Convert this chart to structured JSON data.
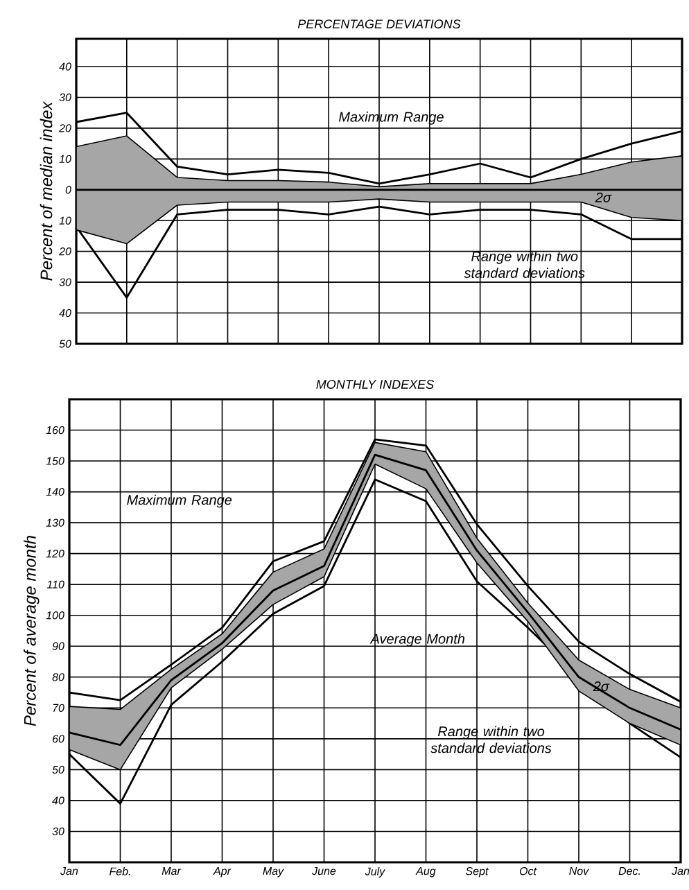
{
  "chart_data": [
    {
      "type": "line",
      "title": "PERCENTAGE DEVIATIONS",
      "ylabel": "Percent of median index",
      "categories": [
        null,
        null,
        null,
        null,
        null,
        null,
        null,
        null,
        null,
        null,
        null,
        null,
        null
      ],
      "tick_labels": "y",
      "grid": true,
      "ylim": [
        -50,
        49
      ],
      "yticks": [
        40,
        30,
        20,
        10,
        0,
        {
          "value": -10,
          "label": "10"
        },
        {
          "value": -20,
          "label": "20"
        },
        {
          "value": -30,
          "label": "30"
        },
        {
          "value": -40,
          "label": "40"
        },
        {
          "value": -50,
          "label": "50"
        }
      ],
      "series": [
        {
          "color": "#000000",
          "values": [
            22,
            25,
            7.5,
            5,
            6.5,
            5.5,
            2,
            5,
            8.5,
            4,
            10,
            15,
            19
          ]
        },
        {
          "color": "#000000",
          "values": [
            -12,
            -35,
            -8,
            -6.5,
            -6.5,
            -8,
            -5.5,
            -8,
            -6.5,
            -6.5,
            -8,
            -16,
            -16
          ]
        },
        {
          "color": "#000000",
          "values": [
            0,
            0,
            0,
            0,
            0,
            0,
            0,
            0,
            0,
            0,
            0,
            0,
            0
          ],
          "upper": [
            14,
            17.5,
            4,
            3,
            3,
            2.5,
            1,
            2,
            2,
            2,
            5,
            9,
            11
          ],
          "lower": [
            -13,
            -17.5,
            -5,
            -4,
            -4,
            -4,
            -3,
            -4,
            -4,
            -4,
            -4,
            -9,
            -10
          ]
        }
      ],
      "annotations": [
        "Maximum Range",
        "Range within two standard deviations",
        "2σ"
      ]
    },
    {
      "type": "line",
      "title": "MONTHLY INDEXES",
      "ylabel": "Percent of average month",
      "categories": [
        "Jan",
        "Feb.",
        "Mar",
        "Apr",
        "May",
        "June",
        "July",
        "Aug",
        "Sept",
        "Oct",
        "Nov",
        "Dec.",
        "Jan"
      ],
      "grid": true,
      "ylim": [
        20,
        170
      ],
      "yticks": [
        30,
        40,
        50,
        60,
        70,
        80,
        90,
        100,
        110,
        120,
        130,
        140,
        150,
        160
      ],
      "series": [
        {
          "color": "#000000",
          "values": [
            75,
            72.5,
            84,
            96,
            117.5,
            124,
            157,
            155,
            129.5,
            109.5,
            91.5,
            81,
            72
          ]
        },
        {
          "color": "#000000",
          "values": [
            55,
            39,
            71,
            85,
            100.5,
            109.5,
            144,
            137,
            111,
            96,
            80,
            65,
            54
          ]
        },
        {
          "color": "#000000",
          "values": [
            62,
            58,
            79,
            91,
            108,
            116,
            152,
            147,
            121,
            101,
            80,
            70,
            63
          ],
          "upper": [
            70.5,
            69.5,
            82.5,
            94,
            114,
            121.5,
            156,
            153,
            125,
            104,
            85.5,
            76,
            70
          ],
          "lower": [
            56.5,
            50,
            76.5,
            89,
            103.5,
            112.5,
            149,
            141,
            117,
            98,
            75.5,
            65,
            58
          ]
        }
      ],
      "annotations": [
        "Maximum Range",
        "Average Month",
        "Range within two standard deviations",
        "2σ"
      ]
    }
  ]
}
